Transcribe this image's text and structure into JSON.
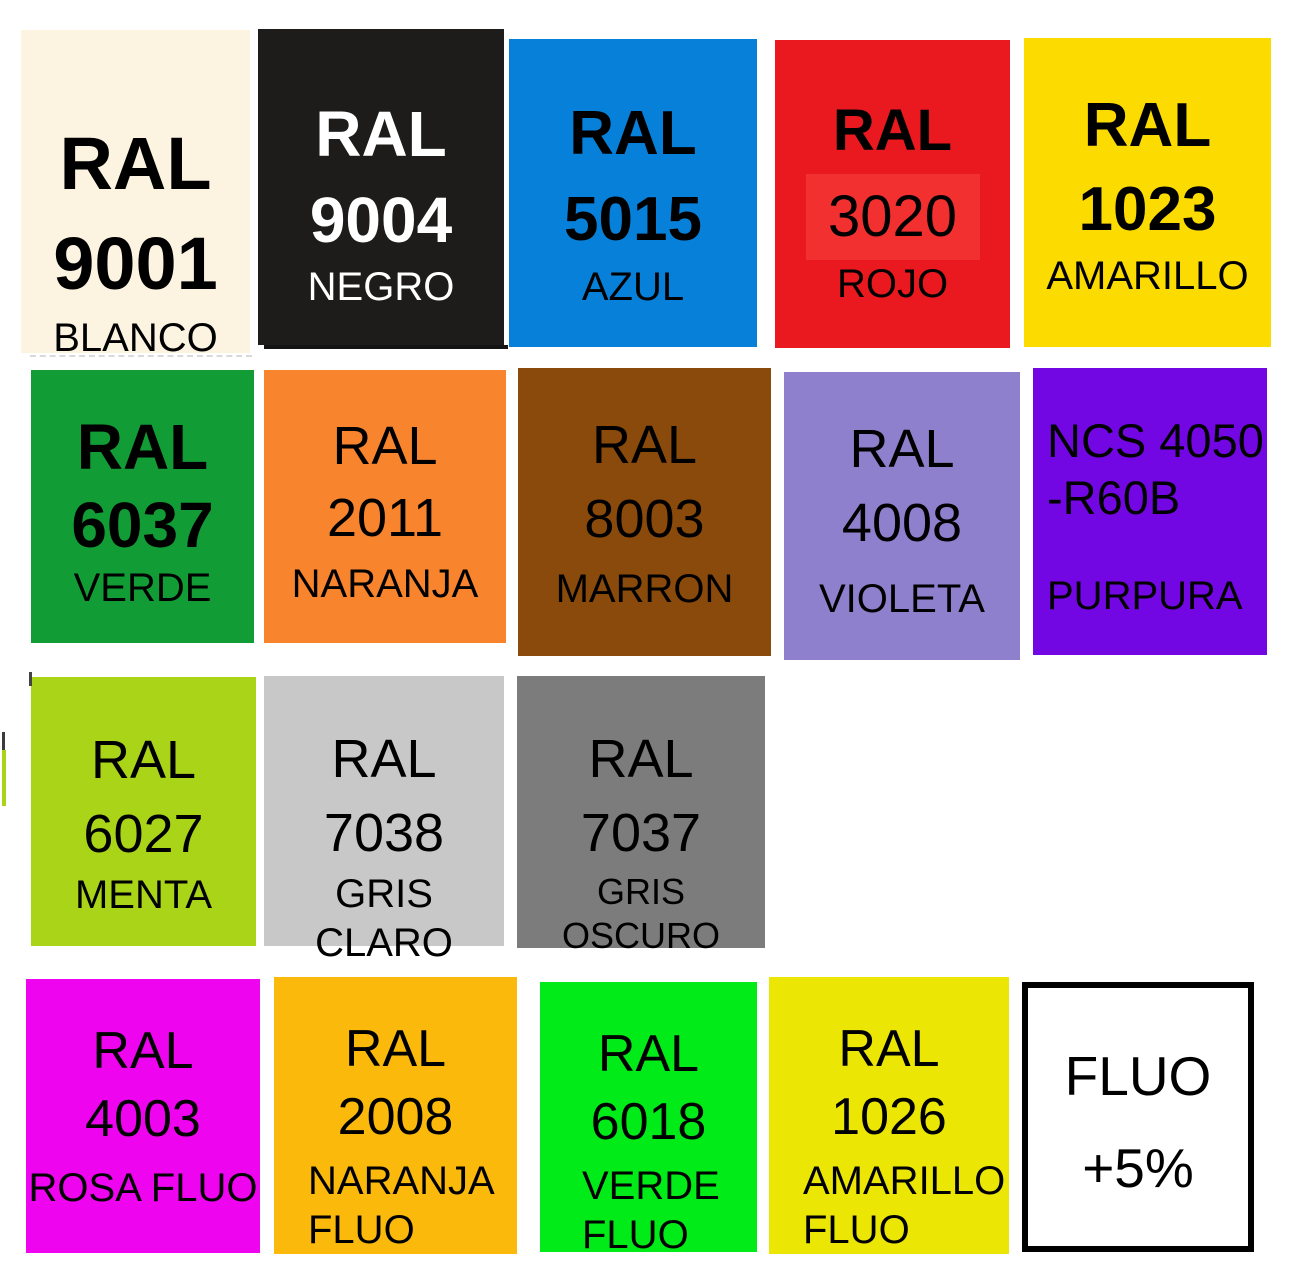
{
  "background": "#FFFFFF",
  "tiles": [
    {
      "id": "ral-9001",
      "lines": [
        "RAL",
        "9001"
      ],
      "label": "BLANCO",
      "bg": "#FCF3E1",
      "fg": "#000000"
    },
    {
      "id": "ral-9004",
      "lines": [
        "RAL",
        "9004"
      ],
      "label": "NEGRO",
      "bg": "#1D1C1A",
      "fg": "#FFFFFF"
    },
    {
      "id": "ral-5015",
      "lines": [
        "RAL",
        "5015"
      ],
      "label": "AZUL",
      "bg": "#0780DA",
      "fg": "#000000"
    },
    {
      "id": "ral-3020",
      "lines": [
        "RAL",
        "3020"
      ],
      "label": "ROJO",
      "bg": "#E9191F",
      "fg": "#000000",
      "band": "#F23030"
    },
    {
      "id": "ral-1023",
      "lines": [
        "RAL",
        "1023"
      ],
      "label": "AMARILLO",
      "bg": "#FBDB00",
      "fg": "#000000"
    },
    {
      "id": "ral-6037",
      "lines": [
        "RAL",
        "6037"
      ],
      "label": "VERDE",
      "bg": "#129C35",
      "fg": "#000000"
    },
    {
      "id": "ral-2011",
      "lines": [
        "RAL",
        "2011"
      ],
      "label": "NARANJA",
      "bg": "#F8842E",
      "fg": "#000000"
    },
    {
      "id": "ral-8003",
      "lines": [
        "RAL",
        "8003"
      ],
      "label": "MARRON",
      "bg": "#8A4A0B",
      "fg": "#000000"
    },
    {
      "id": "ral-4008",
      "lines": [
        "RAL",
        "4008"
      ],
      "label": "VIOLETA",
      "bg": "#8E80CC",
      "fg": "#000000"
    },
    {
      "id": "ncs-4050-r60b",
      "lines": [
        "NCS 4050",
        "-R60B"
      ],
      "label": "PURPURA",
      "bg": "#7207E3",
      "fg": "#000000"
    },
    {
      "id": "ral-6027",
      "lines": [
        "RAL",
        "6027"
      ],
      "label": "MENTA",
      "bg": "#A9D418",
      "fg": "#000000"
    },
    {
      "id": "ral-7038",
      "lines": [
        "RAL",
        "7038"
      ],
      "label": "GRIS CLARO",
      "bg": "#C8C8C8",
      "fg": "#000000"
    },
    {
      "id": "ral-7037",
      "lines": [
        "RAL",
        "7037"
      ],
      "label": "GRIS OSCURO",
      "bg": "#7C7C7C",
      "fg": "#000000"
    },
    {
      "id": "ral-4003",
      "lines": [
        "RAL",
        "4003"
      ],
      "label": "ROSA FLUO",
      "bg": "#EF04EF",
      "fg": "#000000"
    },
    {
      "id": "ral-2008",
      "lines": [
        "RAL",
        "2008"
      ],
      "label": "NARANJA\nFLUO",
      "bg": "#FAB90B",
      "fg": "#000000"
    },
    {
      "id": "ral-6018",
      "lines": [
        "RAL",
        "6018"
      ],
      "label": "VERDE\nFLUO",
      "bg": "#00EB17",
      "fg": "#000000"
    },
    {
      "id": "ral-1026",
      "lines": [
        "RAL",
        "1026"
      ],
      "label": "AMARILLO\nFLUO",
      "bg": "#EBE604",
      "fg": "#000000"
    },
    {
      "id": "fluo-plus-5",
      "lines": [
        "FLUO",
        "+5%"
      ],
      "label": "",
      "bg": "#FFFFFF",
      "fg": "#000000",
      "border": "#000000"
    }
  ]
}
